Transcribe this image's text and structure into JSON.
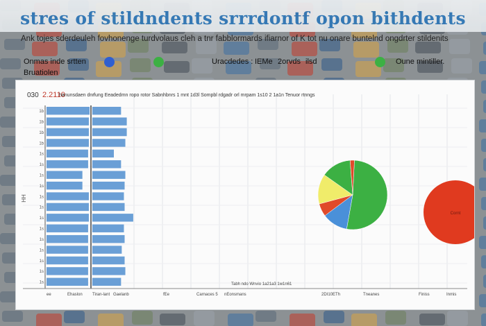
{
  "header": {
    "title": "stres of stildndents srrrdontf opon bithdents",
    "subtitle": "Ank tojes sderdeuleh fovhonenge turdvolaus cleh a tnr fabblormards ifiarnor of K tot nu onare buntelnd ongdrter stildenits"
  },
  "legend": {
    "left_label": "Onmas inde srtten",
    "left_sub": "Bruatiolen",
    "mid_label_1": "Uracdedes :",
    "mid_label_2": "IEMe",
    "mid_label_3": "2orvds",
    "mid_label_4": "ilsd",
    "right_label": "Oune mintiller.",
    "colors": {
      "blue": "#2f5fd0",
      "green": "#3cb043",
      "green_right": "#3cb043"
    }
  },
  "chart_data": [
    {
      "type": "bar",
      "orientation": "horizontal",
      "title": "2.2110",
      "panel_id": "030",
      "header_text": "hanunsdaen dnr",
      "y_tick_labels": [
        "1b",
        "1b",
        "1b",
        "1b",
        "1s",
        "1s",
        "1s",
        "1s",
        "1s",
        "1s",
        "1s",
        "1s",
        "1s",
        "1s",
        "1s",
        "1s",
        "1s"
      ],
      "y_axis_label": "HH",
      "series": [
        {
          "values": [
            60,
            59,
            59,
            59,
            58,
            58,
            50,
            50,
            59,
            59,
            59,
            58,
            58,
            58,
            58,
            58,
            58
          ]
        },
        {
          "values": [
            40,
            48,
            48,
            46,
            30,
            40,
            46,
            45,
            44,
            45,
            57,
            44,
            45,
            41,
            45,
            46,
            40
          ]
        }
      ],
      "x_tick_labels": [
        "ee",
        "Ehaslon",
        "Tiran-lant",
        "Gaelanb",
        "fEe"
      ],
      "xlim": [
        0,
        60
      ]
    },
    {
      "type": "pie",
      "header_text": "fung Eeadedmn ropo rotor Sabnhbnrs 1 mnt 1d3l Sompbl rdgadr orl mrpam 1s10 2 1a1n Tenuor rtnngs",
      "slices": [
        {
          "value": 52,
          "color": "#3cb043"
        },
        {
          "value": 12,
          "color": "#4a90d9"
        },
        {
          "value": 6,
          "color": "#e04a2a"
        },
        {
          "value": 14,
          "color": "#f0ec6a"
        },
        {
          "value": 14,
          "color": "#3cb043"
        },
        {
          "value": 2,
          "color": "#e04a2a"
        }
      ]
    },
    {
      "type": "pie",
      "slices": [
        {
          "value": 100,
          "color": "#e03a1f"
        }
      ],
      "center_label": "Cornt"
    }
  ],
  "footer": {
    "labels": [
      "Carnaces 5",
      "nEonsmans",
      "2DI10ETh",
      "Tneanes",
      "Finiss",
      "Inmis"
    ],
    "caption": "Tabh ndo Wnvio 1a21a3 1w1n61"
  }
}
